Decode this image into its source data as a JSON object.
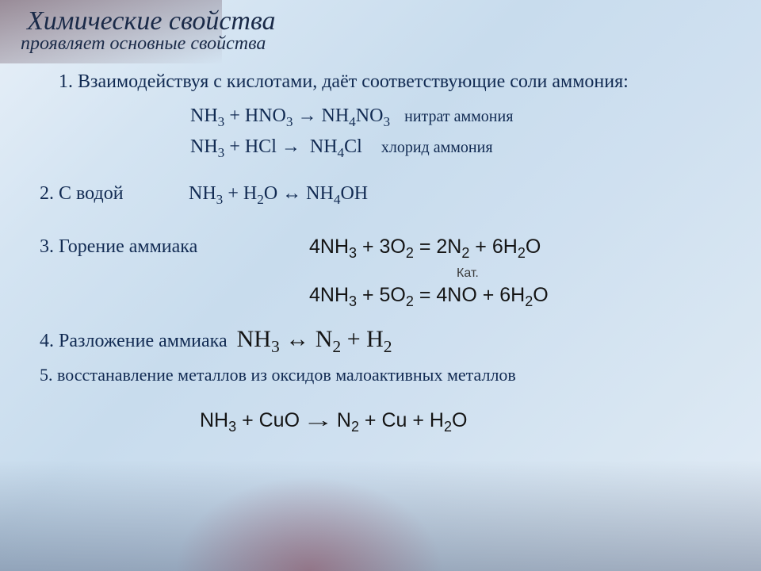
{
  "title1": {
    "text": "Химические свойства",
    "fontsize": 34
  },
  "title2": {
    "text": "проявляет основные свойства",
    "fontsize": 24
  },
  "section1": {
    "intro": "1. Взаимодействуя с кислотами, даёт соответствующие соли аммония:",
    "fontsize": 24,
    "eq1": {
      "formula": "NH₃ + HNO₃ → NH₄NO₃",
      "note": "нитрат аммония"
    },
    "eq2": {
      "formula": "NH₃ + HCl → NH₄Cl",
      "note": "хлорид аммония"
    },
    "eq_fontsize": 24,
    "note_fontsize": 20
  },
  "section2": {
    "label": "2. С водой",
    "eq": "NH₃ + H₂O ↔ NH₄OH",
    "fontsize": 24
  },
  "section3": {
    "label": "3. Горение аммиака",
    "label_fontsize": 24,
    "eq1": "4NH₃ + 3O₂ = 2N₂ + 6H₂O",
    "cat": "Кат.",
    "eq2": "4NH₃ + 5O₂ = 4NO + 6H₂O",
    "eq_fontsize": 25
  },
  "section4": {
    "label": "4. Разложение аммиака",
    "label_fontsize": 24,
    "eq": "NH₃ ↔ N₂ + H₂",
    "eq_fontsize": 30
  },
  "section5": {
    "text": "5. восстанавление металлов из оксидов малоактивных металлов",
    "fontsize": 22
  },
  "final_eq": {
    "formula": "NH₃ + CuO ⟶ N₂ + Cu + H₂O",
    "fontsize": 25
  },
  "colors": {
    "heading": "#1a2a48",
    "body": "#112a52",
    "eq_black": "#141414",
    "bg_light": "#d4e4f2"
  }
}
